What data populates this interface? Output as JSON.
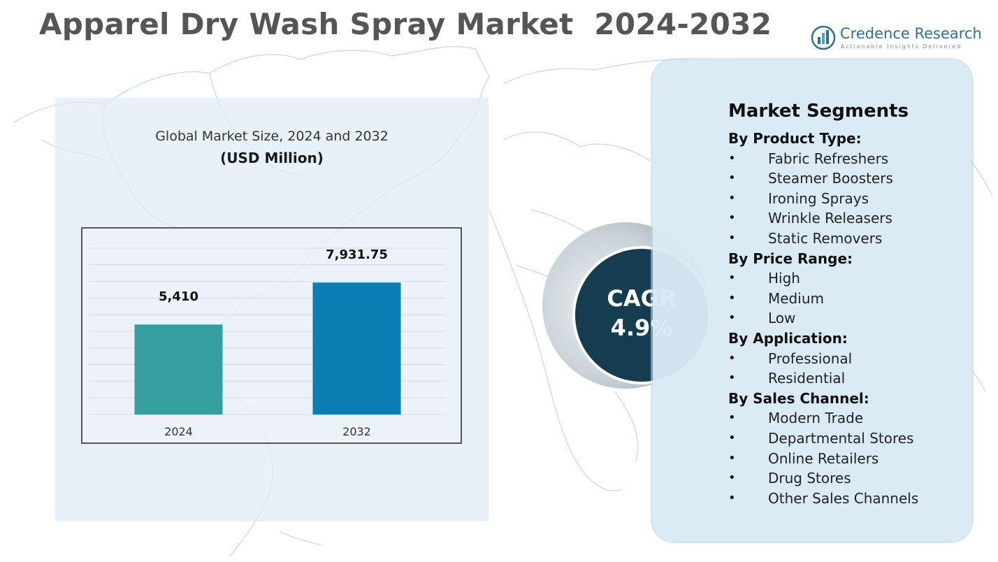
{
  "header": {
    "title": "Apparel Dry Wash Spray Market  2024-2032"
  },
  "logo": {
    "name": "Credence Research",
    "tagline": "Actionable Insights Delivered",
    "icon": "bar-chart-logo-icon",
    "color": "#2f6f99"
  },
  "chart_data": {
    "type": "bar",
    "title": "Global Market Size, 2024 and 2032",
    "unit_label": "(USD Million)",
    "categories": [
      "2024",
      "2032"
    ],
    "values": [
      5410,
      7931.75
    ],
    "value_labels": [
      "5,410",
      "7,931.75"
    ],
    "bar_colors": [
      "#35a09f",
      "#0a7eb2"
    ],
    "ylim": [
      0,
      10000
    ],
    "grid": true,
    "xlabel": "",
    "ylabel": ""
  },
  "cagr": {
    "label": "CAGR",
    "value": "4.9%",
    "color": "#163c52"
  },
  "segments": {
    "heading": "Market Segments",
    "groups": [
      {
        "title": "By Product Type:",
        "items": [
          "Fabric Refreshers",
          "Steamer Boosters",
          "Ironing Sprays",
          "Wrinkle Releasers",
          "Static Removers"
        ]
      },
      {
        "title": "By Price Range:",
        "items": [
          "High",
          "Medium",
          "Low"
        ]
      },
      {
        "title": "By Application:",
        "items": [
          "Professional",
          "Residential"
        ]
      },
      {
        "title": "By Sales Channel:",
        "items": [
          "Modern Trade",
          "Departmental Stores",
          "Online Retailers",
          "Drug Stores",
          "Other Sales Channels"
        ]
      }
    ],
    "bullet": "•"
  }
}
